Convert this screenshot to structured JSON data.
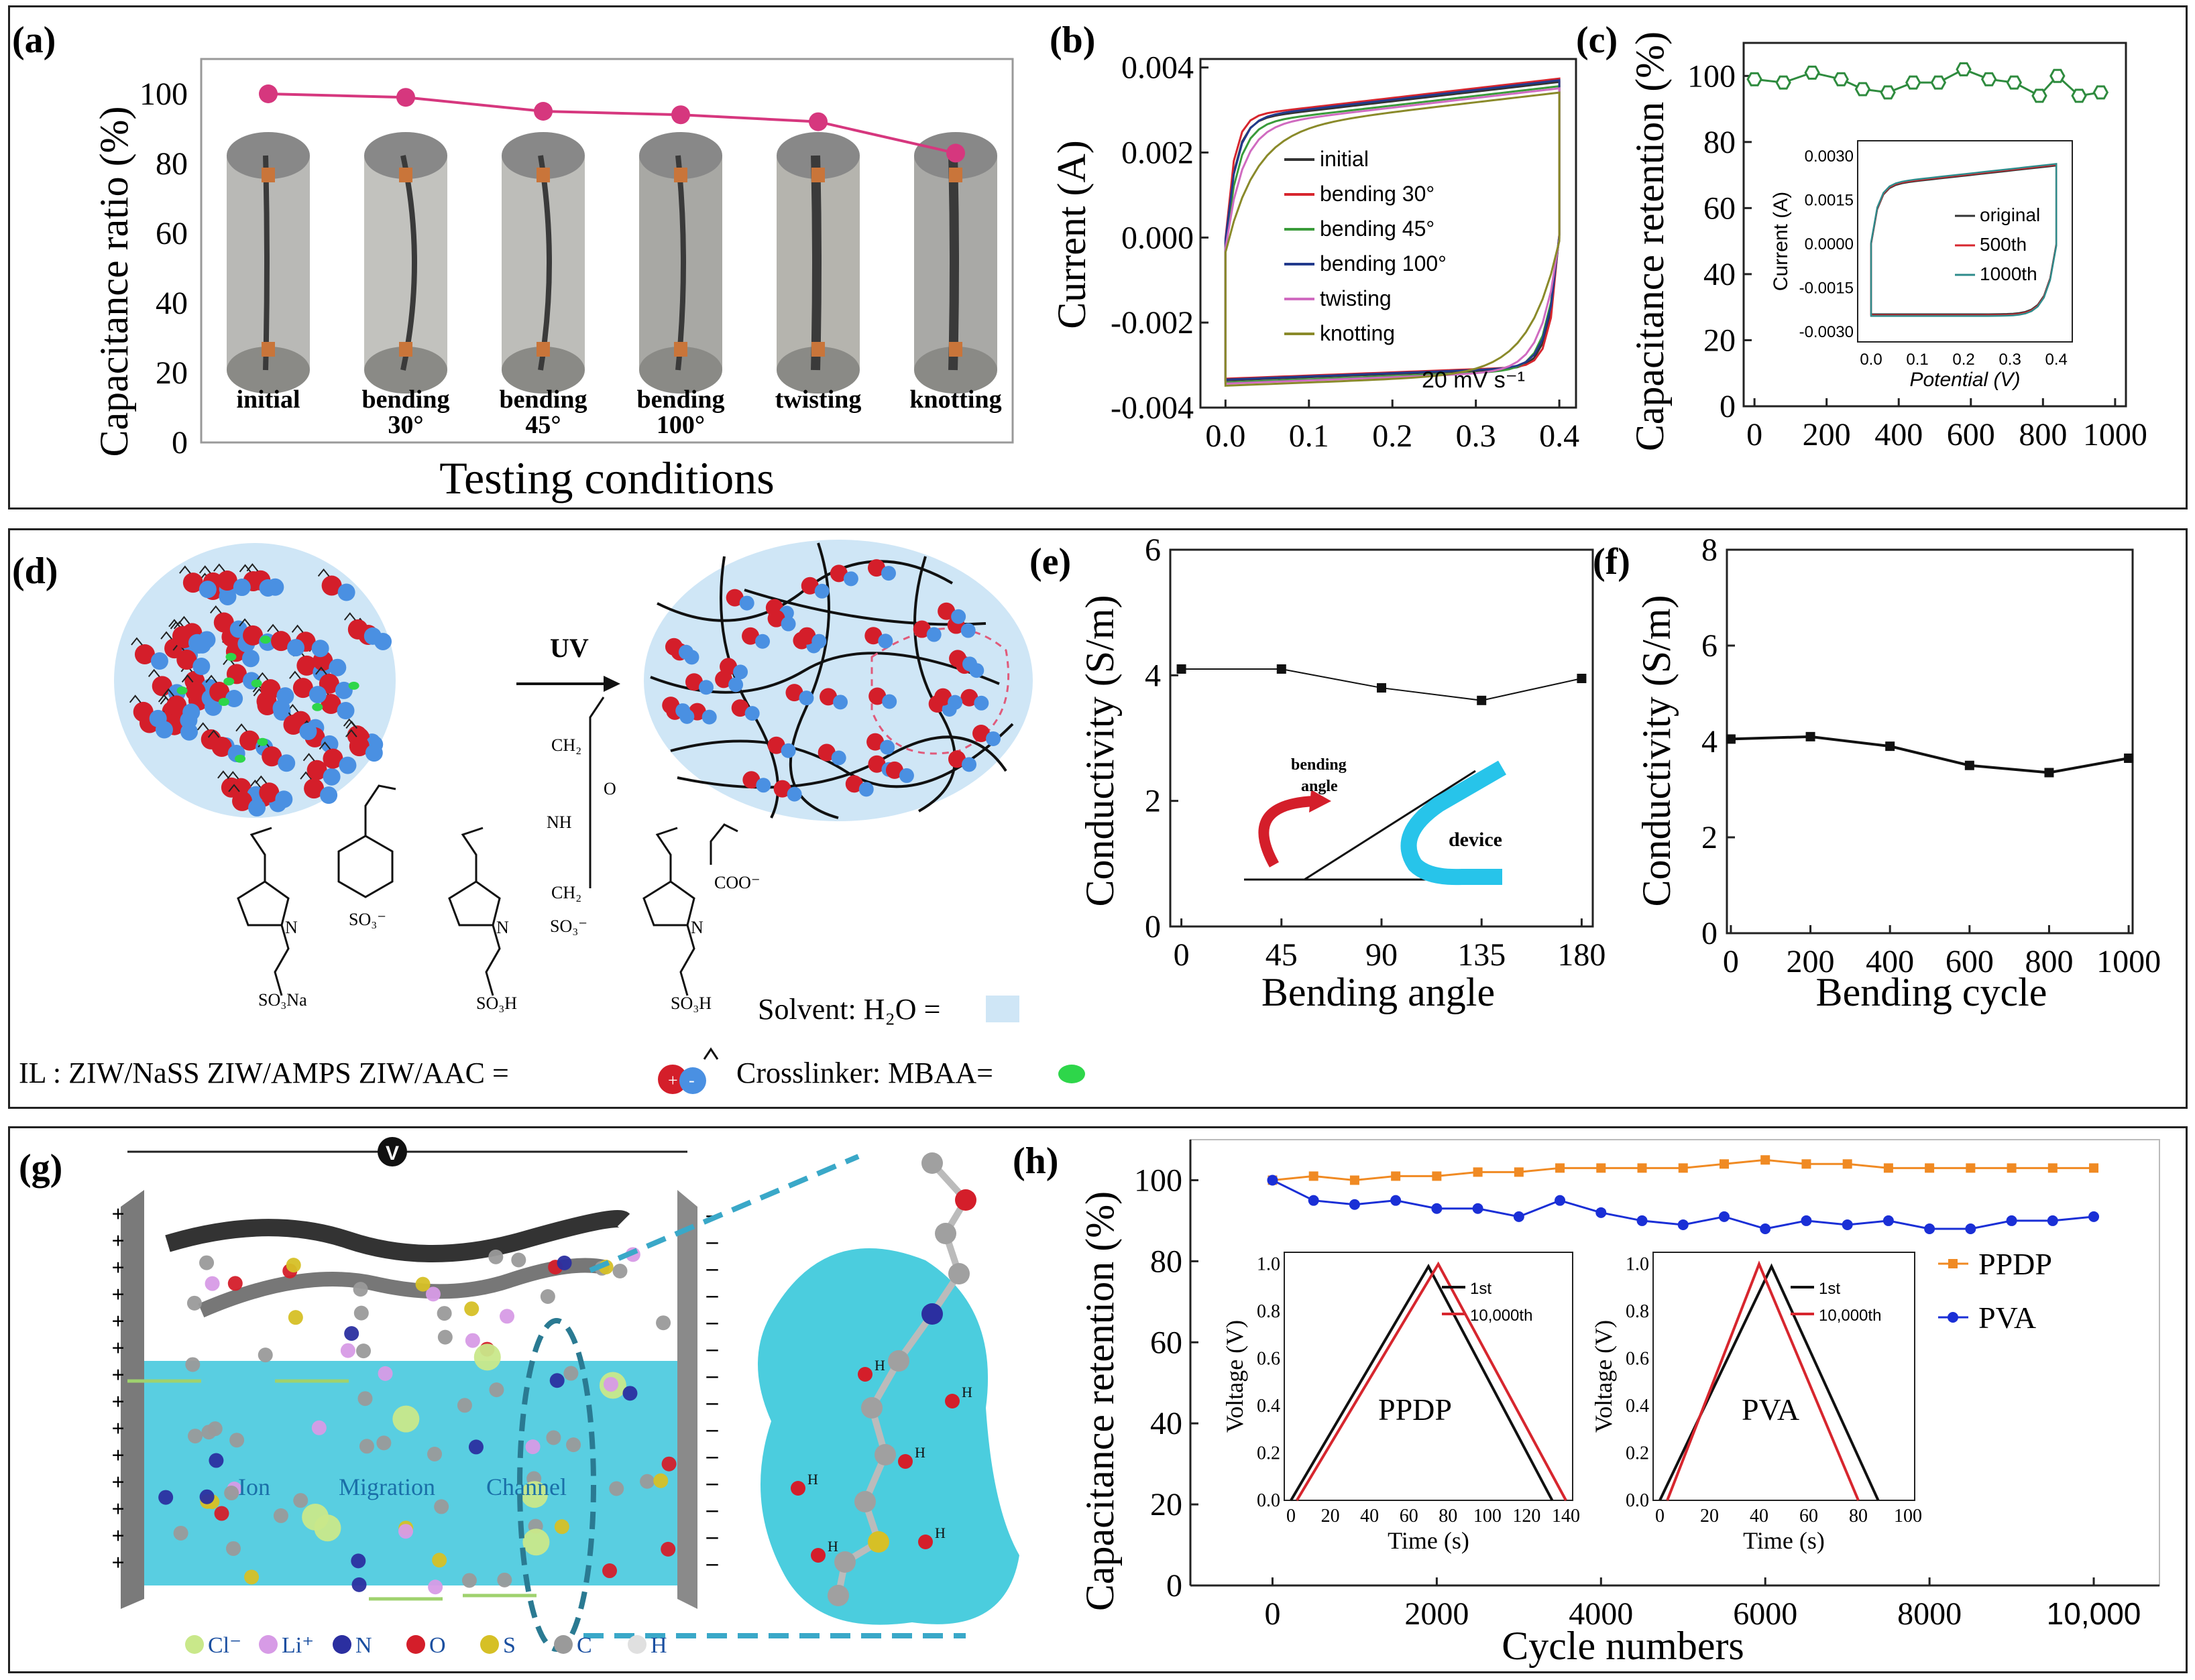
{
  "panel_labels": {
    "a": "(a)",
    "b": "(b)",
    "c": "(c)",
    "d": "(d)",
    "e": "(e)",
    "f": "(f)",
    "g": "(g)",
    "h": "(h)"
  },
  "colors": {
    "pink": "#d6377e",
    "green": "#2e8b3e",
    "orange": "#f08a23",
    "blue": "#1a2fd6",
    "ion_blue": "#2b8fd0",
    "cyan": "#1bbcd4",
    "red": "#d41e2a",
    "mblue": "#4a90e2",
    "black": "#111111"
  },
  "chart_data": [
    {
      "id": "a",
      "type": "line",
      "categories": [
        "initial",
        "bending 30°",
        "bending 45°",
        "bending 100°",
        "twisting",
        "knotting"
      ],
      "category_labels": [
        [
          "initial"
        ],
        [
          "bending",
          "30°"
        ],
        [
          "bending",
          "45°"
        ],
        [
          "bending",
          "100°"
        ],
        [
          "twisting"
        ],
        [
          "knotting"
        ]
      ],
      "values": [
        100,
        99,
        95,
        94,
        92,
        83
      ],
      "xlabel": "Testing conditions",
      "ylabel": "Capacitance ratio (%)",
      "ylim": [
        0,
        110
      ],
      "yticks": [
        0,
        20,
        40,
        60,
        80,
        100
      ]
    },
    {
      "id": "b",
      "type": "line",
      "xlabel": "",
      "ylabel": "Current (A)",
      "xlim": [
        -0.03,
        0.42
      ],
      "ylim": [
        -0.004,
        0.0042
      ],
      "xticks": [
        "0.0",
        "0.1",
        "0.2",
        "0.3",
        "0.4"
      ],
      "yticks": [
        "-0.004",
        "-0.002",
        "0.000",
        "0.002",
        "0.004"
      ],
      "annotation": "20 mV s⁻¹",
      "series": [
        {
          "name": "initial",
          "color": "#333333"
        },
        {
          "name": "bending 30°",
          "color": "#d7262e"
        },
        {
          "name": "bending 45°",
          "color": "#3a9b3a"
        },
        {
          "name": "bending 100°",
          "color": "#223a8c"
        },
        {
          "name": "twisting",
          "color": "#d06bc0"
        },
        {
          "name": "knotting",
          "color": "#8a8a2a"
        }
      ]
    },
    {
      "id": "c",
      "type": "line",
      "xlabel": "",
      "ylabel": "Capacitance retention (%)",
      "xlim": [
        -30,
        1030
      ],
      "ylim": [
        0,
        110
      ],
      "xticks": [
        0,
        200,
        400,
        600,
        800,
        1000
      ],
      "yticks": [
        0,
        20,
        40,
        60,
        80,
        100
      ],
      "x": [
        0,
        80,
        160,
        240,
        300,
        370,
        440,
        510,
        580,
        650,
        720,
        790,
        840,
        900,
        960
      ],
      "values": [
        99,
        98,
        101,
        99,
        96,
        95,
        98,
        98,
        102,
        99,
        98,
        94,
        100,
        94,
        95
      ],
      "inset": {
        "xlabel": "Potential (V)",
        "ylabel": "Current (A)",
        "xticks": [
          "0.0",
          "0.1",
          "0.2",
          "0.3",
          "0.4"
        ],
        "yticks": [
          "-0.0030",
          "-0.0015",
          "0.0000",
          "0.0015",
          "0.0030"
        ],
        "legend": [
          {
            "name": "original",
            "color": "#333333"
          },
          {
            "name": "500th",
            "color": "#d7262e"
          },
          {
            "name": "1000th",
            "color": "#2e8b8b"
          }
        ]
      }
    },
    {
      "id": "e",
      "type": "line",
      "xlabel": "Bending angle",
      "ylabel": "Conductivity (S/m)",
      "xlim": [
        -5,
        185
      ],
      "ylim": [
        0,
        6
      ],
      "xticks": [
        0,
        45,
        90,
        135,
        180
      ],
      "yticks": [
        0,
        2,
        4,
        6
      ],
      "x": [
        0,
        45,
        90,
        135,
        180
      ],
      "values": [
        4.1,
        4.1,
        3.8,
        3.6,
        3.95
      ],
      "inset_labels": {
        "angle": "bending\nangle",
        "device": "device"
      }
    },
    {
      "id": "f",
      "type": "line",
      "xlabel": "Bending cycle",
      "ylabel": "Conductivity (S/m)",
      "xlim": [
        -10,
        1010
      ],
      "ylim": [
        0,
        8
      ],
      "xticks": [
        0,
        200,
        400,
        600,
        800,
        1000
      ],
      "yticks": [
        0,
        2,
        4,
        6,
        8
      ],
      "x": [
        0,
        200,
        400,
        600,
        800,
        1000
      ],
      "values": [
        4.05,
        4.1,
        3.9,
        3.5,
        3.35,
        3.65
      ]
    },
    {
      "id": "h",
      "type": "line",
      "xlabel": "Cycle numbers",
      "ylabel": "Capacitance retention (%)",
      "xlim": [
        -1000,
        10800
      ],
      "ylim": [
        0,
        110
      ],
      "xticks": [
        "0",
        "2000",
        "4000",
        "6000",
        "8000",
        "10,000"
      ],
      "xtick_values": [
        0,
        2000,
        4000,
        6000,
        8000,
        10000
      ],
      "yticks": [
        0,
        20,
        40,
        60,
        80,
        100
      ],
      "series": [
        {
          "name": "PPDP",
          "color": "#f08a23",
          "marker": "square",
          "x": [
            0,
            500,
            1000,
            1500,
            2000,
            2500,
            3000,
            3500,
            4000,
            4500,
            5000,
            5500,
            6000,
            6500,
            7000,
            7500,
            8000,
            8500,
            9000,
            9500,
            10000
          ],
          "values": [
            100,
            101,
            100,
            101,
            101,
            102,
            102,
            103,
            103,
            103,
            103,
            104,
            105,
            104,
            104,
            103,
            103,
            103,
            103,
            103,
            103
          ]
        },
        {
          "name": "PVA",
          "color": "#1a2fd6",
          "marker": "circle",
          "x": [
            0,
            500,
            1000,
            1500,
            2000,
            2500,
            3000,
            3500,
            4000,
            4500,
            5000,
            5500,
            6000,
            6500,
            7000,
            7500,
            8000,
            8500,
            9000,
            9500,
            10000
          ],
          "values": [
            100,
            95,
            94,
            95,
            93,
            93,
            91,
            95,
            92,
            90,
            89,
            91,
            88,
            90,
            89,
            90,
            88,
            88,
            90,
            90,
            91
          ]
        }
      ],
      "insets": [
        {
          "name": "PPDP",
          "xlabel": "Time (s)",
          "ylabel": "Voltage (V)",
          "xticks": [
            0,
            20,
            40,
            60,
            80,
            100,
            120,
            140
          ],
          "yticks": [
            "0.0",
            "0.2",
            "0.4",
            "0.6",
            "0.8",
            "1.0"
          ],
          "legend": [
            "1st",
            "10,000th"
          ]
        },
        {
          "name": "PVA",
          "xlabel": "Time (s)",
          "ylabel": "Voltage (V)",
          "xticks": [
            0,
            20,
            40,
            60,
            80,
            100
          ],
          "yticks": [
            "0.0",
            "0.2",
            "0.4",
            "0.6",
            "0.8",
            "1.0"
          ],
          "legend": [
            "1st",
            "10,000th"
          ]
        }
      ]
    }
  ],
  "diagram_d": {
    "uv_label": "UV",
    "solvent_label": "Solvent: H₂O =",
    "il_label": "IL : ZIW/NaSS  ZIW/AMPS  ZIW/AAC =",
    "crosslinker_label": "Crosslinker: MBAA=",
    "chem_labels": {
      "so3na": "SO₃Na",
      "so3h": "SO₃H",
      "ch2": "CH₂",
      "nh": "NH",
      "o": "O",
      "coo": "COO⁻",
      "so3": "SO₃⁻"
    }
  },
  "diagram_g": {
    "top_symbol": "V",
    "channel_text": [
      "Ion",
      "Migration",
      "Channel"
    ],
    "legend": [
      {
        "sym": "Cl⁻",
        "color": "#c9e88a"
      },
      {
        "sym": "Li⁺",
        "color": "#d79be6"
      },
      {
        "sym": "N",
        "color": "#2b2fa0"
      },
      {
        "sym": "O",
        "color": "#d41e2a"
      },
      {
        "sym": "S",
        "color": "#d6c026"
      },
      {
        "sym": "C",
        "color": "#9a9a9a"
      },
      {
        "sym": "H",
        "color": "#e0e0e0"
      }
    ]
  }
}
